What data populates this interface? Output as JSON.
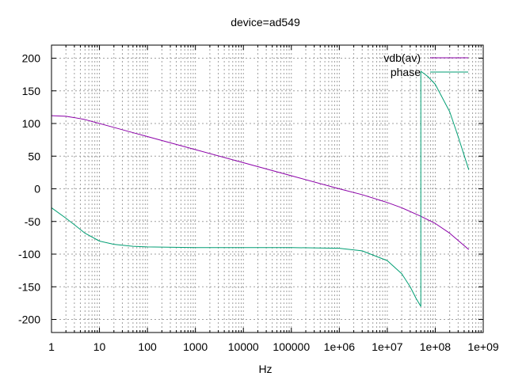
{
  "chart_data": {
    "type": "line",
    "title": "device=ad549",
    "xlabel": "Hz",
    "ylabel": "",
    "x_scale": "log",
    "xlim": [
      1,
      1000000000
    ],
    "ylim": [
      -220,
      220
    ],
    "grid": true,
    "legend_position": "top-right",
    "x_ticks": [
      {
        "value": 1,
        "label": "1"
      },
      {
        "value": 10,
        "label": "10"
      },
      {
        "value": 100,
        "label": "100"
      },
      {
        "value": 1000,
        "label": "1000"
      },
      {
        "value": 10000,
        "label": "10000"
      },
      {
        "value": 100000,
        "label": "100000"
      },
      {
        "value": 1000000,
        "label": "1e+06"
      },
      {
        "value": 10000000,
        "label": "1e+07"
      },
      {
        "value": 100000000,
        "label": "1e+08"
      },
      {
        "value": 1000000000,
        "label": "1e+09"
      }
    ],
    "y_ticks": [
      {
        "value": 200,
        "label": "200"
      },
      {
        "value": 150,
        "label": "150"
      },
      {
        "value": 100,
        "label": "100"
      },
      {
        "value": 50,
        "label": "50"
      },
      {
        "value": 0,
        "label": "0"
      },
      {
        "value": -50,
        "label": "-50"
      },
      {
        "value": -100,
        "label": "-100"
      },
      {
        "value": -150,
        "label": "-150"
      },
      {
        "value": -200,
        "label": "-200"
      }
    ],
    "series": [
      {
        "name": "vdb(av)",
        "color": "#8b00a8",
        "x": [
          1,
          2,
          3,
          5,
          10,
          20,
          50,
          100,
          1000,
          10000,
          100000,
          1000000,
          3000000,
          10000000,
          20000000,
          50000000,
          100000000,
          200000000,
          500000000
        ],
        "y": [
          112,
          111,
          109,
          106,
          100,
          94,
          86,
          80,
          60,
          40,
          20,
          0,
          -9,
          -21,
          -29,
          -42,
          -53,
          -68,
          -93
        ]
      },
      {
        "name": "phase",
        "color": "#009e73",
        "x": [
          1,
          2,
          3,
          5,
          10,
          20,
          50,
          100,
          1000,
          100000,
          1000000,
          3000000,
          10000000,
          20000000,
          30000000,
          40000000,
          50000000,
          50000001,
          70000000,
          100000000,
          200000000,
          300000000,
          500000000
        ],
        "y": [
          -29,
          -45,
          -55,
          -68,
          -80,
          -85,
          -88,
          -89,
          -90,
          -90,
          -91,
          -95,
          -110,
          -130,
          -150,
          -168,
          -180,
          180,
          172,
          160,
          118,
          80,
          29
        ]
      }
    ]
  }
}
